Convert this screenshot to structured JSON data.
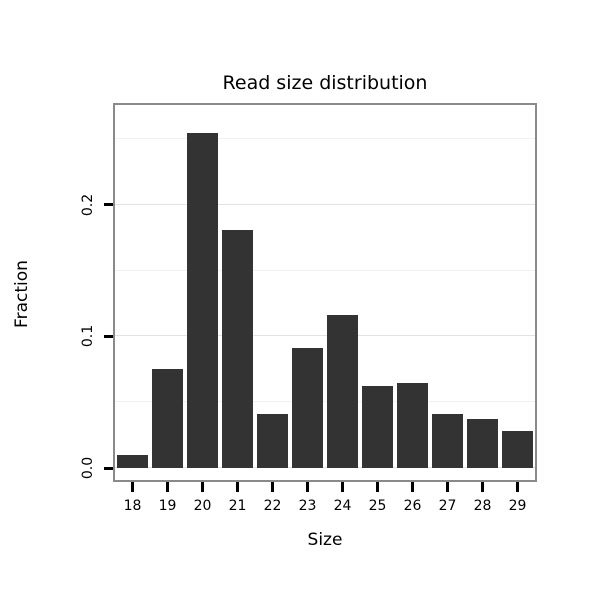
{
  "chart_data": {
    "type": "bar",
    "title": "Read size distribution",
    "xlabel": "Size",
    "ylabel": "Fraction",
    "categories": [
      "18",
      "19",
      "20",
      "21",
      "22",
      "23",
      "24",
      "25",
      "26",
      "27",
      "28",
      "29"
    ],
    "values": [
      0.01,
      0.075,
      0.255,
      0.181,
      0.041,
      0.091,
      0.116,
      0.062,
      0.065,
      0.041,
      0.037,
      0.028
    ],
    "ylim": [
      0,
      0.276
    ],
    "yticks": [
      0.0,
      0.1,
      0.2
    ],
    "ytick_labels": [
      "0.0",
      "0.1",
      "0.2"
    ],
    "yticks_minor": [
      0.05,
      0.15,
      0.25
    ],
    "grid": true,
    "legend": "none",
    "bar_color": "#333333",
    "panel_border_color": "#8a8a8a"
  }
}
